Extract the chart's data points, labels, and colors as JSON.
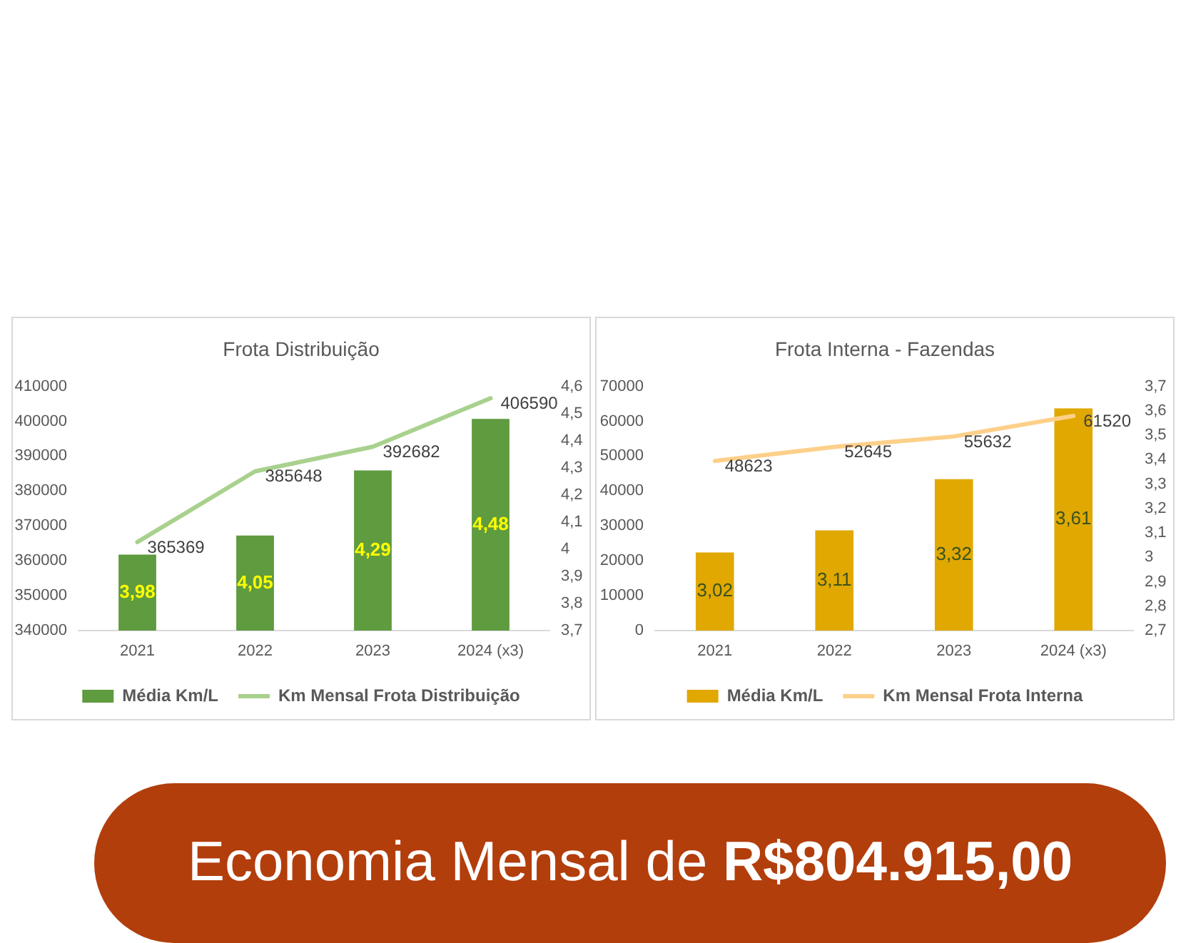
{
  "chart_data": [
    {
      "type": "bar",
      "title": "Frota Distribuição",
      "categories": [
        "2021",
        "2022",
        "2023",
        "2024 (x3)"
      ],
      "series": [
        {
          "name": "Média Km/L",
          "color": "#5f9b3f",
          "axis": "y2",
          "values": [
            3.98,
            4.05,
            4.29,
            4.48
          ],
          "value_labels": [
            "3,98",
            "4,05",
            "4,29",
            "4,48"
          ]
        },
        {
          "name": "Km Mensal Frota Distribuição",
          "type": "line",
          "color": "#a9d18e",
          "values": [
            365369,
            385648,
            392682,
            406590
          ],
          "value_labels": [
            "365369",
            "385648",
            "392682",
            "406590"
          ]
        }
      ],
      "ylim": [
        340000,
        410000
      ],
      "yticks": [
        340000,
        350000,
        360000,
        370000,
        380000,
        390000,
        400000,
        410000
      ],
      "y2lim": [
        3.7,
        4.6
      ],
      "y2ticks": [
        {
          "value": 3.7,
          "label": "3,7"
        },
        {
          "value": 3.8,
          "label": "3,8"
        },
        {
          "value": 3.9,
          "label": "3,9"
        },
        4,
        {
          "value": 4.1,
          "label": "4,1"
        },
        {
          "value": 4.2,
          "label": "4,2"
        },
        {
          "value": 4.3,
          "label": "4,3"
        },
        {
          "value": 4.4,
          "label": "4,4"
        },
        {
          "value": 4.5,
          "label": "4,5"
        },
        {
          "value": 4.6,
          "label": "4,6"
        }
      ],
      "legend": "bottom",
      "marker": "none"
    },
    {
      "type": "bar",
      "title": "Frota Interna - Fazendas",
      "categories": [
        "2021",
        "2022",
        "2023",
        "2024 (x3)"
      ],
      "series": [
        {
          "name": "Média Km/L",
          "color": "#e0a800",
          "axis": "y2",
          "values": [
            3.02,
            3.11,
            3.32,
            3.61
          ],
          "value_labels": [
            "3,02",
            "3,11",
            "3,32",
            "3,61"
          ]
        },
        {
          "name": "Km Mensal Frota Interna",
          "type": "line",
          "color": "#fdd08a",
          "values": [
            48623,
            52645,
            55632,
            61520
          ],
          "value_labels": [
            "48623",
            "52645",
            "55632",
            "61520"
          ]
        }
      ],
      "ylim": [
        0,
        70000
      ],
      "yticks": [
        0,
        10000,
        20000,
        30000,
        40000,
        50000,
        60000,
        70000
      ],
      "y2lim": [
        2.7,
        3.7
      ],
      "y2ticks": [
        {
          "value": 2.7,
          "label": "2,7"
        },
        {
          "value": 2.8,
          "label": "2,8"
        },
        {
          "value": 2.9,
          "label": "2,9"
        },
        3,
        {
          "value": 3.1,
          "label": "3,1"
        },
        {
          "value": 3.2,
          "label": "3,2"
        },
        {
          "value": 3.3,
          "label": "3,3"
        },
        {
          "value": 3.4,
          "label": "3,4"
        },
        {
          "value": 3.5,
          "label": "3,5"
        },
        {
          "value": 3.6,
          "label": "3,6"
        },
        {
          "value": 3.7,
          "label": "3,7"
        }
      ],
      "legend": "bottom",
      "marker": "none"
    },
    {
      "type": "other",
      "annotations": [
        "Economia Mensal de",
        "R$804.915,00"
      ]
    }
  ]
}
